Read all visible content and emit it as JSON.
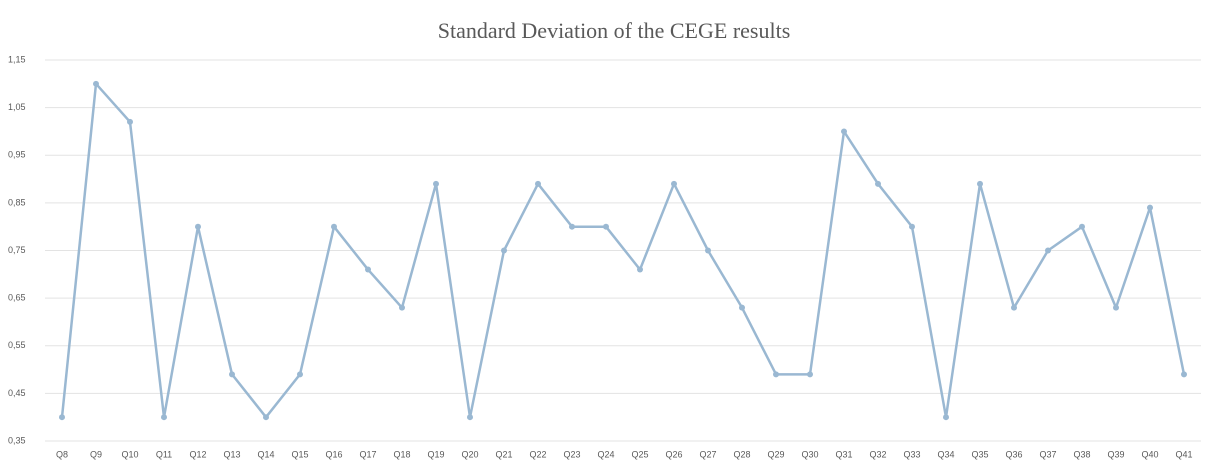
{
  "chart_data": {
    "type": "line",
    "title": "Standard Deviation of the CEGE results",
    "categories": [
      "Q8",
      "Q9",
      "Q10",
      "Q11",
      "Q12",
      "Q13",
      "Q14",
      "Q15",
      "Q16",
      "Q17",
      "Q18",
      "Q19",
      "Q20",
      "Q21",
      "Q22",
      "Q23",
      "Q24",
      "Q25",
      "Q26",
      "Q27",
      "Q28",
      "Q29",
      "Q30",
      "Q31",
      "Q32",
      "Q33",
      "Q34",
      "Q35",
      "Q36",
      "Q37",
      "Q38",
      "Q39",
      "Q40",
      "Q41"
    ],
    "series": [
      {
        "color": "#9ab8d2",
        "values": [
          0.4,
          1.1,
          1.02,
          0.4,
          0.8,
          0.49,
          0.4,
          0.49,
          0.8,
          0.71,
          0.63,
          0.89,
          0.4,
          0.75,
          0.89,
          0.8,
          0.8,
          0.71,
          0.89,
          0.75,
          0.63,
          0.49,
          0.49,
          1.0,
          0.89,
          0.8,
          0.4,
          0.89,
          0.63,
          0.75,
          0.8,
          0.63,
          0.84,
          0.49
        ]
      }
    ],
    "ylim": [
      0.35,
      1.15
    ],
    "yticks": [
      {
        "value": 0.35,
        "label": "0,35"
      },
      {
        "value": 0.45,
        "label": "0,45"
      },
      {
        "value": 0.55,
        "label": "0,55"
      },
      {
        "value": 0.65,
        "label": "0,65"
      },
      {
        "value": 0.75,
        "label": "0,75"
      },
      {
        "value": 0.85,
        "label": "0,85"
      },
      {
        "value": 0.95,
        "label": "0,95"
      },
      {
        "value": 1.05,
        "label": "1,05"
      },
      {
        "value": 1.15,
        "label": "1,15"
      }
    ],
    "grid": true,
    "markers": true
  }
}
